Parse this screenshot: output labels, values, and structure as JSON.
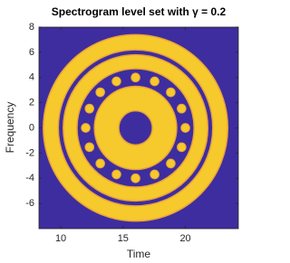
{
  "chart_data": {
    "type": "level-set-image",
    "title": "Spectrogram level set with γ = 0.2",
    "xlabel": "Time",
    "ylabel": "Frequency",
    "xlim": [
      8.25,
      24.25
    ],
    "ylim": [
      -8,
      8
    ],
    "xticks": [
      10,
      15,
      20
    ],
    "yticks": [
      -6,
      -4,
      -2,
      0,
      2,
      4,
      6,
      8
    ],
    "background_color": "#3e2d9e",
    "level_color": "#f6c92c",
    "edge_color": "#e9a33a",
    "center_x": 16,
    "center_y": 0,
    "rings": [
      {
        "r_inner": 6.2,
        "r_outer": 7.4
      },
      {
        "r_inner": 4.7,
        "r_outer": 5.8
      },
      {
        "r_inner": 1.35,
        "r_outer": 3.3
      }
    ],
    "dot_ring": {
      "radius": 4.0,
      "dot_radius": 0.35,
      "count": 16
    }
  }
}
